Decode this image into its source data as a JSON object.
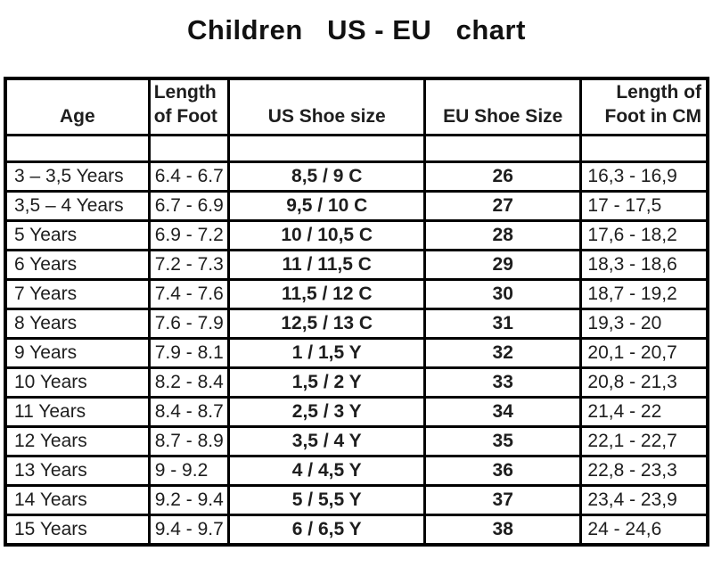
{
  "chart_data": {
    "type": "table",
    "title": "Children   US - EU   chart",
    "columns": [
      "Age",
      "Length\nof Foot",
      "US Shoe size",
      "EU Shoe Size",
      "Length of\nFoot in CM"
    ],
    "rows": [
      [
        "3 – 3,5 Years",
        "6.4 - 6.7",
        "8,5 / 9 C",
        "26",
        "16,3 - 16,9"
      ],
      [
        "3,5 – 4 Years",
        "6.7 - 6.9",
        "9,5 / 10 C",
        "27",
        "17 - 17,5"
      ],
      [
        "5 Years",
        "6.9 - 7.2",
        "10 / 10,5 C",
        "28",
        "17,6 - 18,2"
      ],
      [
        "6 Years",
        "7.2 - 7.3",
        "11 / 11,5 C",
        "29",
        "18,3 - 18,6"
      ],
      [
        "7 Years",
        "7.4 - 7.6",
        "11,5 / 12 C",
        "30",
        "18,7 - 19,2"
      ],
      [
        "8 Years",
        "7.6 - 7.9",
        "12,5 / 13 C",
        "31",
        "19,3 - 20"
      ],
      [
        "9 Years",
        "7.9 - 8.1",
        "1 / 1,5 Y",
        "32",
        "20,1 - 20,7"
      ],
      [
        "10 Years",
        "8.2 - 8.4",
        "1,5 / 2 Y",
        "33",
        "20,8 - 21,3"
      ],
      [
        "11 Years",
        "8.4 - 8.7",
        "2,5 / 3 Y",
        "34",
        "21,4 - 22"
      ],
      [
        "12 Years",
        "8.7 - 8.9",
        "3,5 / 4 Y",
        "35",
        "22,1 - 22,7"
      ],
      [
        "13 Years",
        "9 - 9.2",
        "4 / 4,5 Y",
        "36",
        "22,8 - 23,3"
      ],
      [
        "14 Years",
        "9.2 - 9.4",
        "5 / 5,5 Y",
        "37",
        "23,4 - 23,9"
      ],
      [
        "15 Years",
        "9.4 - 9.7",
        "6 / 6,5 Y",
        "38",
        "24 - 24,6"
      ]
    ]
  }
}
